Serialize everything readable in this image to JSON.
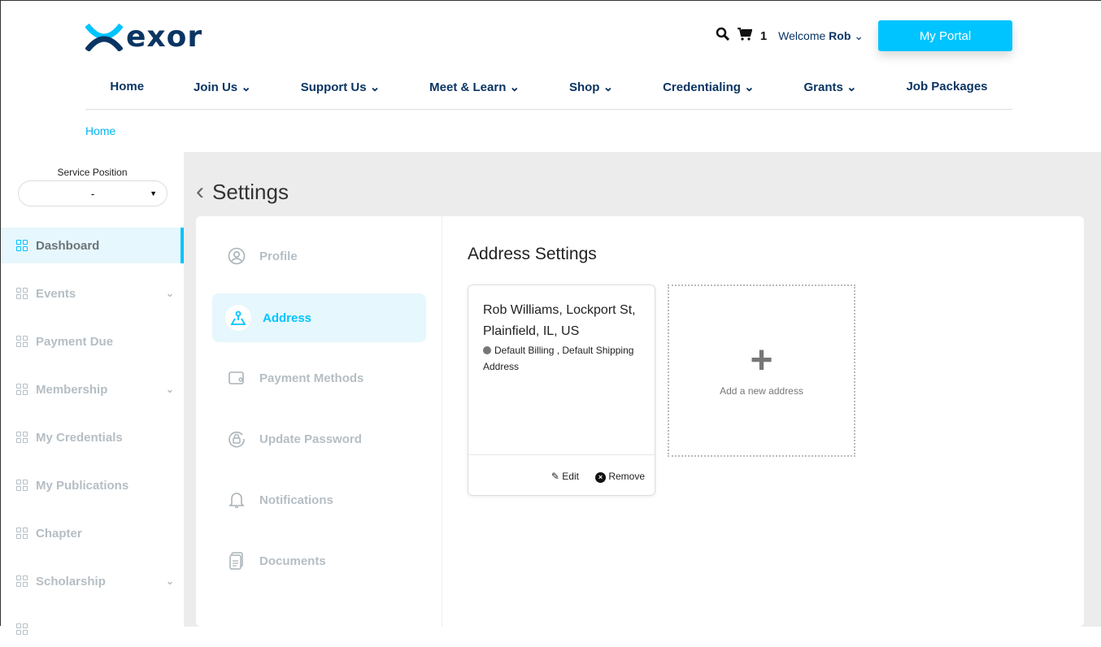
{
  "header": {
    "logo": "exor",
    "cart_count": "1",
    "welcome_prefix": "Welcome",
    "user": "Rob",
    "portal_button": "My Portal"
  },
  "nav": [
    "Home",
    "Join Us",
    "Support Us",
    "Meet & Learn",
    "Shop",
    "Credentialing",
    "Grants",
    "Job Packages"
  ],
  "nav_dropdown": [
    false,
    true,
    true,
    true,
    true,
    true,
    true,
    false
  ],
  "breadcrumb": "Home",
  "sidebar": {
    "service_position_label": "Service Position",
    "service_position_value": "-",
    "items": [
      {
        "label": "Dashboard"
      },
      {
        "label": "Events"
      },
      {
        "label": "Payment Due"
      },
      {
        "label": "Membership"
      },
      {
        "label": "My Credentials"
      },
      {
        "label": "My Publications"
      },
      {
        "label": "Chapter"
      },
      {
        "label": "Scholarship"
      }
    ]
  },
  "settings": {
    "title": "Settings",
    "nav": [
      {
        "label": "Profile"
      },
      {
        "label": "Address"
      },
      {
        "label": "Payment Methods"
      },
      {
        "label": "Update Password"
      },
      {
        "label": "Notifications"
      },
      {
        "label": "Documents"
      }
    ]
  },
  "address": {
    "title": "Address Settings",
    "card": {
      "name": "Rob Williams, Lockport St, Plainfield, IL, US",
      "default": "Default Billing , Default Shipping Address",
      "edit": "Edit",
      "remove": "Remove"
    },
    "add_new": "Add a new address"
  },
  "colors": {
    "accent": "#00c4ff",
    "brand": "#0a3563"
  }
}
